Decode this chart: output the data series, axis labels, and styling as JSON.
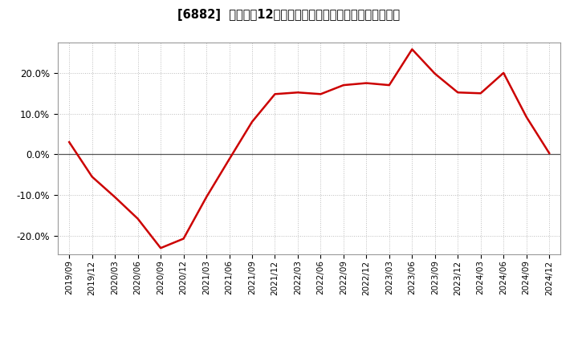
{
  "title": "[6882]  売上高の12か月移動合計の対前年同期増減率の推移",
  "line_color": "#cc0000",
  "background_color": "#ffffff",
  "plot_bg_color": "#ffffff",
  "grid_color": "#bbbbbb",
  "zero_line_color": "#555555",
  "ylim": [
    -0.245,
    0.275
  ],
  "yticks": [
    -0.2,
    -0.1,
    0.0,
    0.1,
    0.2
  ],
  "dates": [
    "2019/09",
    "2019/12",
    "2020/03",
    "2020/06",
    "2020/09",
    "2020/12",
    "2021/03",
    "2021/06",
    "2021/09",
    "2021/12",
    "2022/03",
    "2022/06",
    "2022/09",
    "2022/12",
    "2023/03",
    "2023/06",
    "2023/09",
    "2023/12",
    "2024/03",
    "2024/06",
    "2024/09",
    "2024/12"
  ],
  "values": [
    0.03,
    -0.055,
    -0.105,
    -0.158,
    -0.23,
    -0.207,
    -0.105,
    -0.012,
    0.08,
    0.148,
    0.152,
    0.148,
    0.17,
    0.175,
    0.17,
    0.258,
    0.198,
    0.152,
    0.15,
    0.2,
    0.092,
    0.003
  ]
}
